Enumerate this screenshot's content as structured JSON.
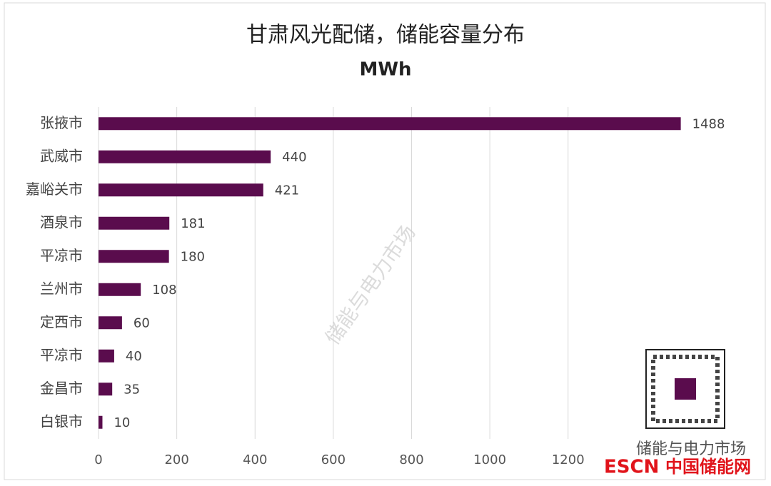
{
  "chart_data": {
    "type": "hbar",
    "title": "甘肃风光配储，储能容量分布",
    "subtitle": "MWh",
    "categories": [
      "张掖市",
      "武威市",
      "嘉峪关市",
      "酒泉市",
      "平凉市",
      "兰州市",
      "定西市",
      "平凉市",
      "金昌市",
      "白银市"
    ],
    "values": [
      1488,
      440,
      421,
      181,
      180,
      108,
      60,
      40,
      35,
      10
    ],
    "color": "#5a0c4d",
    "xlim": [
      0,
      1600
    ],
    "xticks": [
      0,
      200,
      400,
      600,
      800,
      1000,
      1200
    ],
    "grid": true
  },
  "overlay": {
    "watermark": "储能与电力市场",
    "account": "储能与电力市场",
    "logo": "ESCN",
    "logo_text": "中国储能网"
  }
}
